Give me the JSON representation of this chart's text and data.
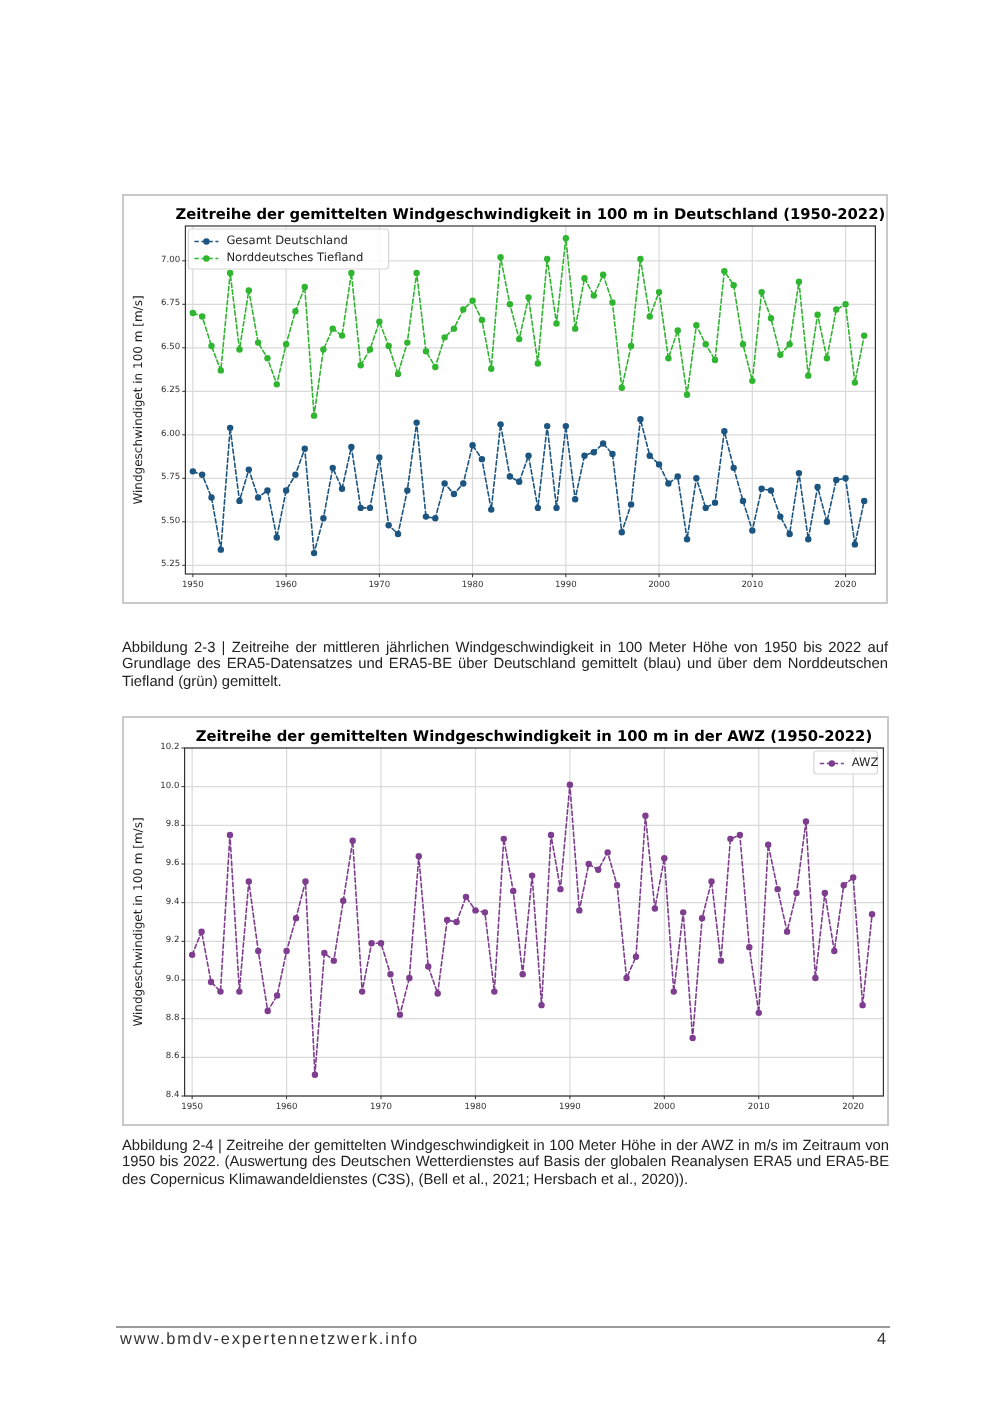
{
  "chart_data": [
    {
      "type": "line",
      "title": "Zeitreihe der gemittelten Windgeschwindigkeit in 100 m in Deutschland (1950-2022)",
      "ylabel": "Windgeschwindiget in 100 m [m/s]",
      "x": [
        1950,
        1951,
        1952,
        1953,
        1954,
        1955,
        1956,
        1957,
        1958,
        1959,
        1960,
        1961,
        1962,
        1963,
        1964,
        1965,
        1966,
        1967,
        1968,
        1969,
        1970,
        1971,
        1972,
        1973,
        1974,
        1975,
        1976,
        1977,
        1978,
        1979,
        1980,
        1981,
        1982,
        1983,
        1984,
        1985,
        1986,
        1987,
        1988,
        1989,
        1990,
        1991,
        1992,
        1993,
        1994,
        1995,
        1996,
        1997,
        1998,
        1999,
        2000,
        2001,
        2002,
        2003,
        2004,
        2005,
        2006,
        2007,
        2008,
        2009,
        2010,
        2011,
        2012,
        2013,
        2014,
        2015,
        2016,
        2017,
        2018,
        2019,
        2020,
        2021,
        2022
      ],
      "series": [
        {
          "name": "Gesamt Deutschland",
          "color": "#1c5580",
          "values": [
            5.79,
            5.77,
            5.64,
            5.34,
            6.04,
            5.62,
            5.8,
            5.64,
            5.68,
            5.41,
            5.68,
            5.77,
            5.92,
            5.32,
            5.52,
            5.81,
            5.69,
            5.93,
            5.58,
            5.58,
            5.87,
            5.48,
            5.43,
            5.68,
            6.07,
            5.53,
            5.52,
            5.72,
            5.66,
            5.72,
            5.94,
            5.86,
            5.57,
            6.06,
            5.76,
            5.73,
            5.88,
            5.58,
            6.05,
            5.58,
            6.05,
            5.63,
            5.88,
            5.9,
            5.95,
            5.89,
            5.44,
            5.6,
            6.09,
            5.88,
            5.83,
            5.72,
            5.76,
            5.4,
            5.75,
            5.58,
            5.61,
            6.02,
            5.81,
            5.62,
            5.45,
            5.69,
            5.68,
            5.53,
            5.43,
            5.78,
            5.4,
            5.7,
            5.5,
            5.74,
            5.75,
            5.37,
            5.62
          ]
        },
        {
          "name": "Norddeutsches Tiefland",
          "color": "#2fb52f",
          "values": [
            6.7,
            6.68,
            6.51,
            6.37,
            6.93,
            6.49,
            6.83,
            6.53,
            6.44,
            6.29,
            6.52,
            6.71,
            6.85,
            6.11,
            6.49,
            6.61,
            6.57,
            6.93,
            6.4,
            6.49,
            6.65,
            6.51,
            6.35,
            6.53,
            6.93,
            6.48,
            6.39,
            6.56,
            6.61,
            6.72,
            6.77,
            6.66,
            6.38,
            7.02,
            6.75,
            6.55,
            6.79,
            6.41,
            7.01,
            6.64,
            7.13,
            6.61,
            6.9,
            6.8,
            6.92,
            6.76,
            6.27,
            6.51,
            7.01,
            6.68,
            6.82,
            6.44,
            6.6,
            6.23,
            6.63,
            6.52,
            6.43,
            6.94,
            6.86,
            6.52,
            6.31,
            6.82,
            6.67,
            6.46,
            6.52,
            6.88,
            6.34,
            6.69,
            6.44,
            6.72,
            6.75,
            6.3,
            6.57
          ]
        }
      ],
      "xlim": [
        1949.2,
        2023.2
      ],
      "xticks": [
        1950,
        1960,
        1970,
        1980,
        1990,
        2000,
        2010,
        2020
      ],
      "ylim": [
        5.2,
        7.2
      ],
      "yticks": [
        5.25,
        {
          "value": 5.5,
          "label": "5.50"
        },
        5.75,
        {
          "value": 6,
          "label": "6.00"
        },
        6.25,
        {
          "value": 6.5,
          "label": "6.50"
        },
        6.75,
        {
          "value": 7,
          "label": "7.00"
        }
      ],
      "grid": true,
      "legend": "top left",
      "marker": "circle",
      "line_style": "dashed",
      "annotations": [
        "Abbildung 2-3 | Zeitreihe der mittleren jährlichen Windgeschwindigkeit in 100 Meter Höhe von 1950 bis 2022 auf Grundlage des ERA5-Datensatzes und ERA5-BE über Deutschland gemittelt (blau) und über dem Norddeutschen Tiefland (grün) gemittelt."
      ]
    },
    {
      "type": "line",
      "title": "Zeitreihe der gemittelten Windgeschwindigkeit in 100 m in der AWZ (1950-2022)",
      "ylabel": "Windgeschwindiget in 100 m [m/s]",
      "x": [
        1950,
        1951,
        1952,
        1953,
        1954,
        1955,
        1956,
        1957,
        1958,
        1959,
        1960,
        1961,
        1962,
        1963,
        1964,
        1965,
        1966,
        1967,
        1968,
        1969,
        1970,
        1971,
        1972,
        1973,
        1974,
        1975,
        1976,
        1977,
        1978,
        1979,
        1980,
        1981,
        1982,
        1983,
        1984,
        1985,
        1986,
        1987,
        1988,
        1989,
        1990,
        1991,
        1992,
        1993,
        1994,
        1995,
        1996,
        1997,
        1998,
        1999,
        2000,
        2001,
        2002,
        2003,
        2004,
        2005,
        2006,
        2007,
        2008,
        2009,
        2010,
        2011,
        2012,
        2013,
        2014,
        2015,
        2016,
        2017,
        2018,
        2019,
        2020,
        2021,
        2022
      ],
      "series": [
        {
          "name": "AWZ",
          "color": "#7e3d8e",
          "values": [
            9.13,
            9.25,
            8.99,
            8.94,
            9.75,
            8.94,
            9.51,
            9.15,
            8.84,
            8.92,
            9.15,
            9.32,
            9.51,
            8.51,
            9.14,
            9.1,
            9.41,
            9.72,
            8.94,
            9.19,
            9.19,
            9.03,
            8.82,
            9.01,
            9.64,
            9.07,
            8.93,
            9.31,
            9.3,
            9.43,
            9.36,
            9.35,
            8.94,
            9.73,
            9.46,
            9.03,
            9.54,
            8.87,
            9.75,
            9.47,
            10.01,
            9.36,
            9.6,
            9.57,
            9.66,
            9.49,
            9.01,
            9.12,
            9.85,
            9.37,
            9.63,
            8.94,
            9.35,
            8.7,
            9.32,
            9.51,
            9.1,
            9.73,
            9.75,
            9.17,
            8.83,
            9.7,
            9.47,
            9.25,
            9.45,
            9.82,
            9.01,
            9.45,
            9.15,
            9.49,
            9.53,
            8.87,
            9.34
          ]
        }
      ],
      "xlim": [
        1949.2,
        2023.2
      ],
      "xticks": [
        1950,
        1960,
        1970,
        1980,
        1990,
        2000,
        2010,
        2020
      ],
      "ylim": [
        8.4,
        10.2
      ],
      "yticks": [
        8.4,
        8.6,
        8.8,
        {
          "value": 9,
          "label": "9.0"
        },
        9.2,
        9.4,
        9.6,
        9.8,
        {
          "value": 10,
          "label": "10.0"
        },
        10.2
      ],
      "grid": true,
      "legend": "top right",
      "marker": "circle",
      "line_style": "dashed",
      "annotations": [
        "Abbildung 2-4 | Zeitreihe der gemittelten Windgeschwindigkeit in 100 Meter Höhe in der AWZ in m/s im Zeitraum von 1950 bis 2022. (Auswertung des Deutschen Wetterdienstes auf Basis der globalen Reanalysen ERA5 und ERA5-BE des Copernicus Klimawandeldienstes (C3S), (Bell et al., 2021; Hersbach et al., 2020)).",
        "www.bmdv-expertennetzwerk.info",
        "4"
      ]
    }
  ]
}
